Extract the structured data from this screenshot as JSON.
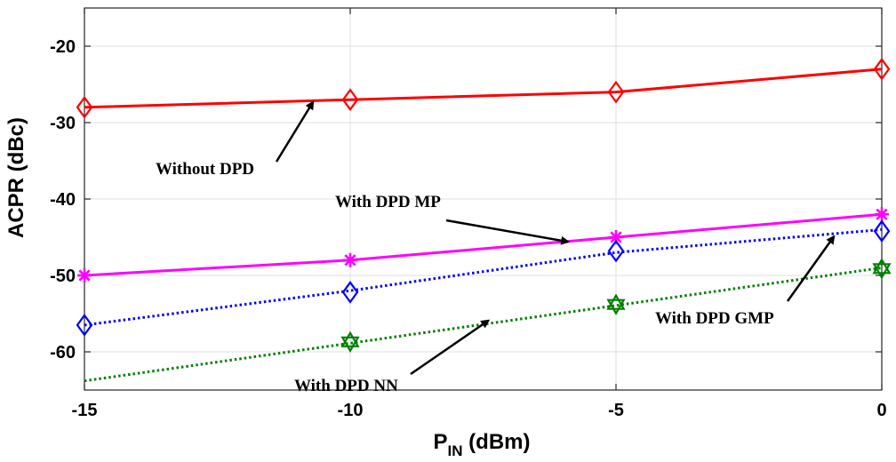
{
  "chart_data": {
    "type": "line",
    "xlabel": "P",
    "xlabel_subscript": "IN",
    "xlabel_unit": " (dBm)",
    "ylabel": "ACPR (dBc)",
    "xlim": [
      -15,
      0
    ],
    "ylim": [
      -65,
      -15
    ],
    "xticks": [
      -15,
      -10,
      -5,
      0
    ],
    "yticks": [
      -20,
      -30,
      -40,
      -50,
      -60
    ],
    "grid": true,
    "series": [
      {
        "name": "Without DPD",
        "color": "#ff0000",
        "line": "solid",
        "marker": "diamond",
        "line_x": [
          -15,
          -10,
          -5,
          0
        ],
        "line_y": [
          -28,
          -27,
          -26,
          -23
        ],
        "points": [
          [
            -15,
            -28
          ],
          [
            -10,
            -27
          ],
          [
            -5,
            -26
          ],
          [
            0,
            -23
          ]
        ]
      },
      {
        "name": "With DPD MP",
        "color": "#ff00ff",
        "line": "solid",
        "marker": "asterisk",
        "line_x": [
          -15,
          -10,
          -5,
          0
        ],
        "line_y": [
          -50,
          -48,
          -45,
          -42
        ],
        "points": [
          [
            -15,
            -50
          ],
          [
            -10,
            -48
          ],
          [
            -5,
            -45
          ],
          [
            0,
            -42
          ]
        ]
      },
      {
        "name": "With DPD GMP",
        "color": "#0000ff",
        "line": "dotted",
        "marker": "diamond",
        "line_x": [
          -15,
          -10,
          -5,
          0
        ],
        "line_y": [
          -56.5,
          -52,
          -47,
          -44
        ],
        "points": [
          [
            -15,
            -56.5
          ],
          [
            -10,
            -52.2
          ],
          [
            -5,
            -46.8
          ],
          [
            0,
            -44.2
          ]
        ]
      },
      {
        "name": "With DPD NN",
        "color": "#008000",
        "line": "dotted",
        "marker": "hexagram",
        "line_x": [
          -15,
          0
        ],
        "line_y": [
          -63.8,
          -49
        ],
        "points": [
          [
            -10,
            -58.7
          ],
          [
            -5,
            -53.8
          ],
          [
            0,
            -49.1
          ]
        ]
      }
    ],
    "annotations": [
      {
        "text": "Without DPD",
        "arrow_to": [
          -10.7,
          -27.3
        ]
      },
      {
        "text": "With DPD MP",
        "arrow_to": [
          -5.9,
          -45.6
        ]
      },
      {
        "text": "With DPD GMP",
        "arrow_to": [
          -0.9,
          -44.9
        ]
      },
      {
        "text": "With DPD NN",
        "arrow_to": [
          -7.4,
          -55.9
        ]
      }
    ]
  }
}
